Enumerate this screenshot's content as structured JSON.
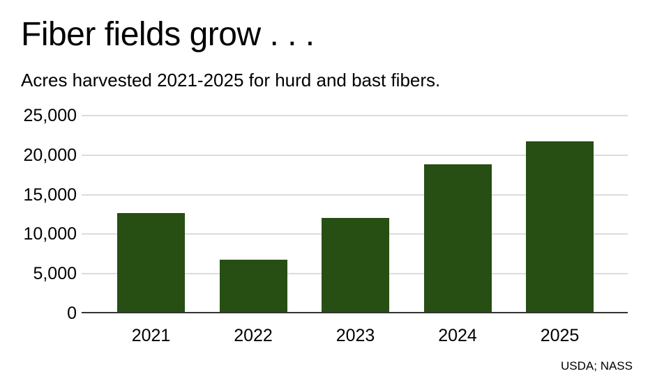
{
  "page": {
    "title": "Fiber fields grow . . .",
    "subtitle": "Acres harvested 2021-2025 for hurd and bast fibers.",
    "source": "USDA; NASS"
  },
  "colors": {
    "bar_fill": "#274e13",
    "gridline": "#dcdcdc",
    "axis_line": "#333333",
    "text": "#000000",
    "background": "#ffffff"
  },
  "chart_data": {
    "type": "bar",
    "title": "Fiber fields grow . . .",
    "subtitle": "Acres harvested 2021-2025 for hurd and bast fibers.",
    "categories": [
      "2021",
      "2022",
      "2023",
      "2024",
      "2025"
    ],
    "values": [
      12700,
      6750,
      12100,
      18800,
      21700
    ],
    "series_name": "Acres harvested",
    "xlabel": "",
    "ylabel": "",
    "ylim": [
      0,
      25000
    ],
    "yticks": [
      0,
      5000,
      10000,
      15000,
      20000,
      25000
    ],
    "ytick_labels": [
      "0",
      "5,000",
      "10,000",
      "15,000",
      "20,000",
      "25,000"
    ],
    "grid": "horizontal-only",
    "legend": "none",
    "source": "USDA; NASS"
  }
}
